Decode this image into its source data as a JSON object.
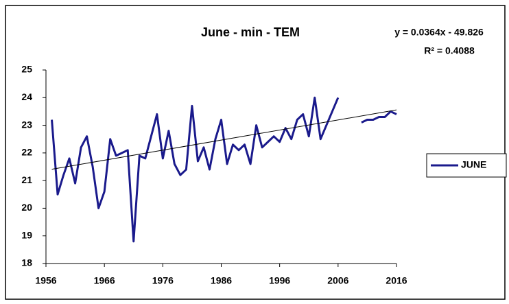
{
  "chart_data": {
    "type": "line",
    "title": "June - min - TEM",
    "x": [
      1957,
      1958,
      1959,
      1960,
      1961,
      1962,
      1963,
      1964,
      1965,
      1966,
      1967,
      1968,
      1969,
      1970,
      1971,
      1972,
      1973,
      1974,
      1975,
      1976,
      1977,
      1978,
      1979,
      1980,
      1981,
      1982,
      1983,
      1984,
      1985,
      1986,
      1987,
      1988,
      1989,
      1990,
      1991,
      1992,
      1993,
      1994,
      1995,
      1996,
      1997,
      1998,
      1999,
      2000,
      2001,
      2002,
      2003,
      2004,
      2005,
      2006,
      2007,
      2008,
      2009,
      2010,
      2011,
      2012,
      2013,
      2014,
      2015,
      2016
    ],
    "series": [
      {
        "name": "JUNE",
        "color": "#1a1a8c",
        "values": [
          23.2,
          20.5,
          21.2,
          21.8,
          20.9,
          22.2,
          22.6,
          21.5,
          20.0,
          20.6,
          22.5,
          21.9,
          22.0,
          22.1,
          18.8,
          21.9,
          21.8,
          22.6,
          23.4,
          21.8,
          22.8,
          21.6,
          21.2,
          21.4,
          23.7,
          21.7,
          22.2,
          21.4,
          22.5,
          23.2,
          21.6,
          22.3,
          22.1,
          22.3,
          21.6,
          23.0,
          22.2,
          22.4,
          22.6,
          22.4,
          22.9,
          22.5,
          23.2,
          23.4,
          22.6,
          24.0,
          22.5,
          23.0,
          23.5,
          24.0,
          null,
          null,
          null,
          23.1,
          23.2,
          23.2,
          23.3,
          23.3,
          23.5,
          23.4
        ]
      }
    ],
    "trendline": {
      "equation": "y = 0.0364x - 49.826",
      "r_squared_label": "R² = 0.4088",
      "slope": 0.0364,
      "intercept": -49.826,
      "color": "#000000"
    },
    "xlim": [
      1956,
      2016
    ],
    "xticks": [
      1956,
      1966,
      1976,
      1986,
      1996,
      2006,
      2016
    ],
    "ylim": [
      18,
      25
    ],
    "yticks": [
      18,
      19,
      20,
      21,
      22,
      23,
      24,
      25
    ],
    "legend": "right"
  }
}
